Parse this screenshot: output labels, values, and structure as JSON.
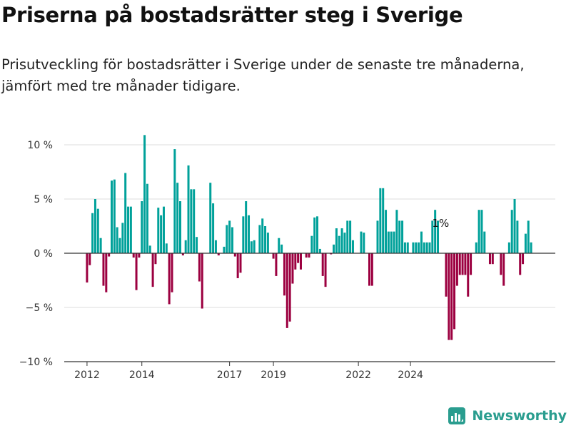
{
  "title": "Priserna på bostadsrätter steg i Sverige",
  "subtitle": "Prisutveckling för bostadsrätter i Sverige under de senaste tre månaderna, jämfört med tre månader tidigare.",
  "brand": {
    "name": "Newsworthy"
  },
  "colors": {
    "positive": "#00a19a",
    "negative": "#9c0040",
    "grid": "#dddddd",
    "axis": "#333333",
    "brand": "#2a9d8f"
  },
  "chart_data": {
    "type": "bar",
    "xlabel": "",
    "ylabel": "",
    "ylim": [
      -10,
      11
    ],
    "y_ticks": [
      10,
      5,
      0,
      -5,
      -10
    ],
    "y_tick_labels": [
      "10 %",
      "5 %",
      "0 %",
      "−5 %",
      "−10 %"
    ],
    "x_ticks": [
      {
        "label": "2012",
        "index": 0
      },
      {
        "label": "2014",
        "index": 20
      },
      {
        "label": "2017",
        "index": 52
      },
      {
        "label": "2019",
        "index": 68
      },
      {
        "label": "2022",
        "index": 99
      },
      {
        "label": "2024",
        "index": 118
      }
    ],
    "annotation": {
      "text": "1%",
      "index": 129,
      "value": 1
    },
    "values": [
      -2.7,
      -1.1,
      3.7,
      5.0,
      4.1,
      1.4,
      -3.0,
      -3.6,
      -0.3,
      6.7,
      6.8,
      2.4,
      1.4,
      2.8,
      7.4,
      4.3,
      4.3,
      -0.4,
      -3.4,
      -0.4,
      4.8,
      10.9,
      6.4,
      0.7,
      -3.1,
      -1.0,
      4.2,
      3.5,
      4.3,
      0.9,
      -4.7,
      -3.6,
      9.6,
      6.5,
      4.8,
      -0.2,
      1.2,
      8.1,
      5.9,
      5.9,
      1.5,
      -2.6,
      -5.1,
      0,
      0,
      6.5,
      4.6,
      1.2,
      -0.2,
      0,
      0.6,
      2.6,
      3.0,
      2.4,
      -0.3,
      -2.3,
      -1.8,
      3.4,
      4.8,
      3.5,
      1.1,
      1.2,
      0,
      2.6,
      3.2,
      2.5,
      1.9,
      0,
      -0.5,
      -2.1,
      1.4,
      0.8,
      -3.9,
      -6.9,
      -6.3,
      -2.8,
      -1.5,
      -0.9,
      -1.5,
      0,
      -0.4,
      -0.4,
      1.6,
      3.3,
      3.4,
      0.4,
      -2.1,
      -3.1,
      0,
      -0.1,
      0.8,
      2.3,
      1.6,
      2.3,
      1.9,
      3.0,
      3.0,
      1.2,
      0,
      0,
      2.0,
      1.9,
      0,
      -3.0,
      -3.0,
      0,
      3.0,
      6.0,
      6.0,
      4.0,
      2.0,
      2.0,
      2.0,
      4.0,
      3.0,
      3.0,
      1.0,
      1.0,
      0,
      1.0,
      1.0,
      1.0,
      2.0,
      1.0,
      1.0,
      1.0,
      3.0,
      4.0,
      3.0,
      0,
      0,
      -4.0,
      -8.0,
      -8.0,
      -7.0,
      -3.0,
      -2.0,
      -2.0,
      -2.0,
      -4.0,
      -2.0,
      0,
      1.0,
      4.0,
      4.0,
      2.0,
      0,
      -1.0,
      -1.0,
      0,
      0,
      -2.0,
      -3.0,
      0,
      1.0,
      4.0,
      5.0,
      3.0,
      -2.0,
      -1.0,
      1.8,
      3.0,
      1.0
    ]
  }
}
